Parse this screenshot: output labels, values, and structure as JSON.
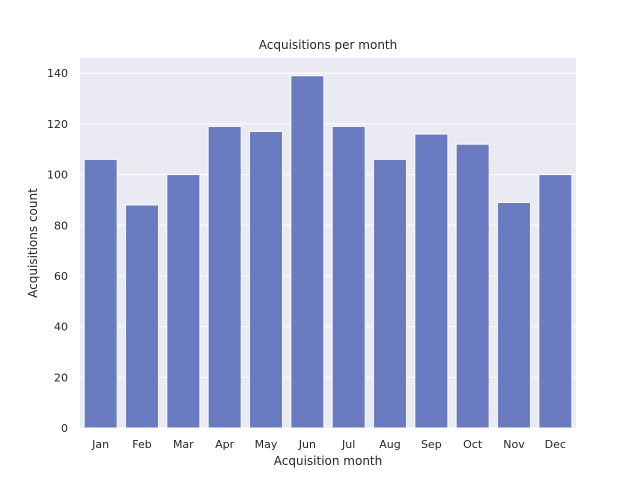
{
  "chart_data": {
    "type": "bar",
    "title": "Acquisitions per month",
    "xlabel": "Acquisition month",
    "ylabel": "Acquisitions count",
    "categories": [
      "Jan",
      "Feb",
      "Mar",
      "Apr",
      "May",
      "Jun",
      "Jul",
      "Aug",
      "Sep",
      "Oct",
      "Nov",
      "Dec"
    ],
    "values": [
      106,
      88,
      100,
      119,
      117,
      139,
      119,
      106,
      116,
      112,
      89,
      100
    ],
    "ylim": [
      0,
      146
    ],
    "yticks": [
      0,
      20,
      40,
      60,
      80,
      100,
      120,
      140
    ],
    "grid": true,
    "legend": "none",
    "colors": {
      "bar": "#6a7bc2",
      "plot_background": "#eaeaf2",
      "grid": "#ffffff"
    }
  }
}
